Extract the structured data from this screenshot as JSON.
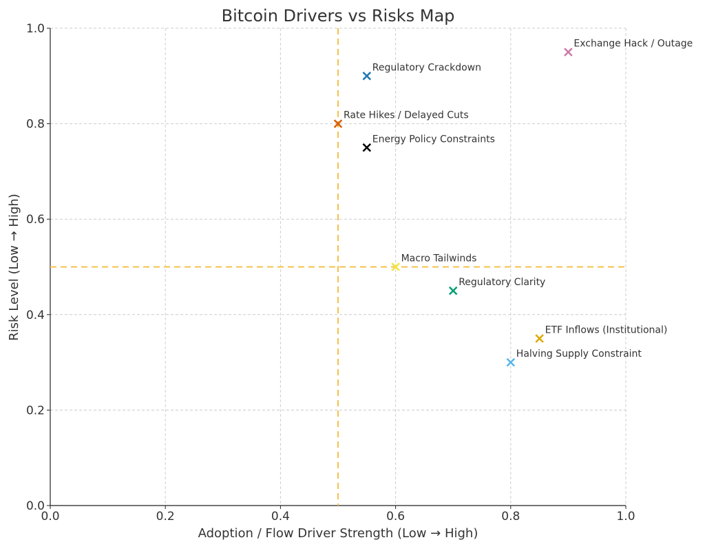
{
  "chart_data": {
    "type": "scatter",
    "title": "Bitcoin Drivers vs Risks Map",
    "xlabel": "Adoption / Flow Driver Strength (Low → High)",
    "ylabel": "Risk Level (Low → High)",
    "xlim": [
      0,
      1
    ],
    "ylim": [
      0,
      1
    ],
    "x_ticks": [
      "0.0",
      "0.2",
      "0.4",
      "0.6",
      "0.8",
      "1.0"
    ],
    "y_ticks": [
      "0.0",
      "0.2",
      "0.4",
      "0.6",
      "0.8",
      "1.0"
    ],
    "grid": true,
    "marker": "x",
    "reference_lines": {
      "x": 0.5,
      "y": 0.5,
      "color": "#f5c04a",
      "style": "dashed"
    },
    "points": [
      {
        "label": "Regulatory Crackdown",
        "x": 0.55,
        "y": 0.9,
        "color": "#1f77b4"
      },
      {
        "label": "Rate Hikes / Delayed Cuts",
        "x": 0.5,
        "y": 0.8,
        "color": "#d55e00"
      },
      {
        "label": "Energy Policy Constraints",
        "x": 0.55,
        "y": 0.75,
        "color": "#000000"
      },
      {
        "label": "Exchange Hack / Outage",
        "x": 0.9,
        "y": 0.95,
        "color": "#cc79a7"
      },
      {
        "label": "Macro Tailwinds",
        "x": 0.6,
        "y": 0.5,
        "color": "#f0e442"
      },
      {
        "label": "Regulatory Clarity",
        "x": 0.7,
        "y": 0.45,
        "color": "#009e73"
      },
      {
        "label": "ETF Inflows (Institutional)",
        "x": 0.85,
        "y": 0.35,
        "color": "#e0a800"
      },
      {
        "label": "Halving Supply Constraint",
        "x": 0.8,
        "y": 0.3,
        "color": "#56b4e9"
      }
    ]
  }
}
